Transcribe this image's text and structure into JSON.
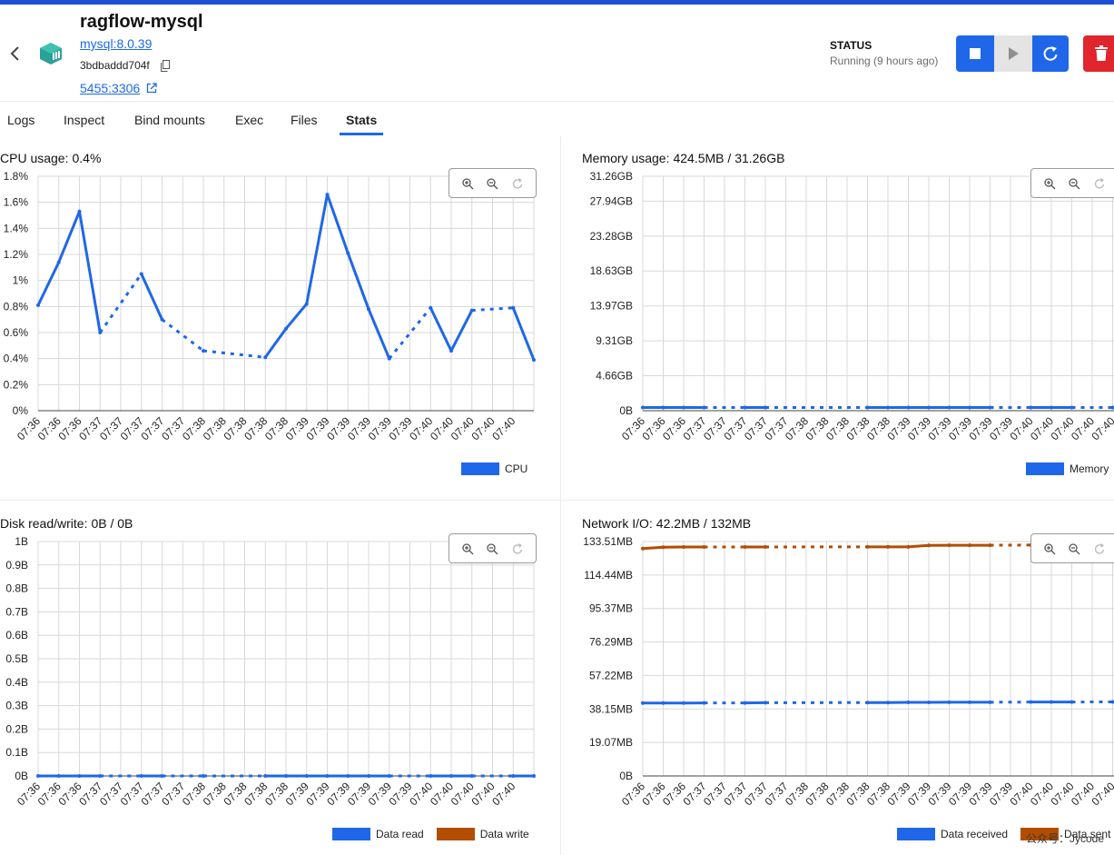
{
  "header": {
    "title": "ragflow-mysql",
    "image": "mysql:8.0.39",
    "container_id": "3bdbaddd704f",
    "port": "5455:3306"
  },
  "status": {
    "label": "STATUS",
    "text": "Running (9 hours ago)"
  },
  "tabs": [
    "Logs",
    "Inspect",
    "Bind mounts",
    "Exec",
    "Files",
    "Stats"
  ],
  "active_tab": "Stats",
  "colors": {
    "accent": "#1f67e8",
    "danger": "#e0252c",
    "write": "#b34d00"
  },
  "panels": {
    "cpu": {
      "title": "CPU usage:",
      "value": "0.4%"
    },
    "memory": {
      "title": "Memory usage:",
      "value": "424.5MB / 31.26GB"
    },
    "disk": {
      "title": "Disk read/write:",
      "value": "0B / 0B"
    },
    "network": {
      "title": "Network I/O:",
      "value": "42.2MB / 132MB"
    }
  },
  "x_ticks": [
    "07:36",
    "07:36",
    "07:36",
    "07:37",
    "07:37",
    "07:37",
    "07:37",
    "07:37",
    "07:38",
    "07:38",
    "07:38",
    "07:38",
    "07:38",
    "07:39",
    "07:39",
    "07:39",
    "07:39",
    "07:39",
    "07:39",
    "07:40",
    "07:40",
    "07:40",
    "07:40",
    "07:40"
  ],
  "chart_data": [
    {
      "type": "line",
      "id": "cpu",
      "y_ticks": [
        "0%",
        "0.2%",
        "0.4%",
        "0.6%",
        "0.8%",
        "1%",
        "1.2%",
        "1.4%",
        "1.6%",
        "1.8%"
      ],
      "ylim": [
        0,
        1.8
      ],
      "series": [
        {
          "name": "CPU",
          "color": "#1f67e8",
          "points": [
            [
              0,
              0.81
            ],
            [
              1,
              1.14
            ],
            [
              2,
              1.53
            ],
            [
              3,
              0.6
            ],
            [
              5,
              1.05
            ],
            [
              6,
              0.7
            ],
            [
              8,
              0.46
            ],
            [
              11,
              0.41
            ],
            [
              12,
              0.63
            ],
            [
              13,
              0.82
            ],
            [
              14,
              1.66
            ],
            [
              15,
              1.21
            ],
            [
              16,
              0.78
            ],
            [
              17,
              0.4
            ],
            [
              19,
              0.79
            ],
            [
              20,
              0.46
            ],
            [
              21,
              0.77
            ],
            [
              23,
              0.79
            ],
            [
              24,
              0.39
            ]
          ],
          "dashed_segments": [
            [
              3,
              5
            ],
            [
              6,
              8
            ],
            [
              8,
              11
            ],
            [
              17,
              19
            ],
            [
              21,
              23
            ]
          ]
        }
      ]
    },
    {
      "type": "line",
      "id": "memory",
      "y_ticks": [
        "0B",
        "4.66GB",
        "9.31GB",
        "13.97GB",
        "18.63GB",
        "23.28GB",
        "27.94GB",
        "31.26GB"
      ],
      "y_values": [
        0,
        4.66,
        9.31,
        13.97,
        18.63,
        23.28,
        27.94,
        31.26
      ],
      "ylim": [
        0,
        31.26
      ],
      "series": [
        {
          "name": "Memory",
          "color": "#1f67e8",
          "points": [
            [
              0,
              0.42
            ],
            [
              1,
              0.42
            ],
            [
              2,
              0.42
            ],
            [
              3,
              0.42
            ],
            [
              5,
              0.42
            ],
            [
              6,
              0.42
            ],
            [
              11,
              0.42
            ],
            [
              12,
              0.42
            ],
            [
              13,
              0.42
            ],
            [
              14,
              0.42
            ],
            [
              15,
              0.42
            ],
            [
              16,
              0.42
            ],
            [
              17,
              0.42
            ],
            [
              19,
              0.42
            ],
            [
              20,
              0.42
            ],
            [
              21,
              0.42
            ],
            [
              23,
              0.42
            ],
            [
              24,
              0.42
            ]
          ],
          "dashed_segments": [
            [
              3,
              5
            ],
            [
              6,
              11
            ],
            [
              17,
              19
            ],
            [
              21,
              23
            ]
          ]
        }
      ]
    },
    {
      "type": "line",
      "id": "disk",
      "y_ticks": [
        "0B",
        "0.1B",
        "0.2B",
        "0.3B",
        "0.4B",
        "0.5B",
        "0.6B",
        "0.7B",
        "0.8B",
        "0.9B",
        "1B"
      ],
      "ylim": [
        0,
        1
      ],
      "series": [
        {
          "name": "Data read",
          "color": "#1f67e8",
          "points": [
            [
              0,
              0
            ],
            [
              1,
              0
            ],
            [
              2,
              0
            ],
            [
              3,
              0
            ],
            [
              5,
              0
            ],
            [
              6,
              0
            ],
            [
              8,
              0
            ],
            [
              11,
              0
            ],
            [
              12,
              0
            ],
            [
              13,
              0
            ],
            [
              14,
              0
            ],
            [
              15,
              0
            ],
            [
              16,
              0
            ],
            [
              17,
              0
            ],
            [
              19,
              0
            ],
            [
              20,
              0
            ],
            [
              21,
              0
            ],
            [
              23,
              0
            ],
            [
              24,
              0
            ]
          ],
          "dashed_segments": [
            [
              3,
              5
            ],
            [
              6,
              8
            ],
            [
              8,
              11
            ],
            [
              17,
              19
            ],
            [
              21,
              23
            ]
          ]
        },
        {
          "name": "Data write",
          "color": "#b34d00",
          "points": [],
          "dashed_segments": []
        }
      ]
    },
    {
      "type": "line",
      "id": "network",
      "y_ticks": [
        "0B",
        "19.07MB",
        "38.15MB",
        "57.22MB",
        "76.29MB",
        "95.37MB",
        "114.44MB",
        "133.51MB"
      ],
      "y_values": [
        0,
        19.07,
        38.15,
        57.22,
        76.29,
        95.37,
        114.44,
        133.51
      ],
      "ylim": [
        0,
        133.51
      ],
      "series": [
        {
          "name": "Data received",
          "color": "#1f67e8",
          "points": [
            [
              0,
              41.5
            ],
            [
              1,
              41.5
            ],
            [
              2,
              41.5
            ],
            [
              3,
              41.6
            ],
            [
              5,
              41.6
            ],
            [
              6,
              41.7
            ],
            [
              11,
              41.8
            ],
            [
              12,
              41.8
            ],
            [
              13,
              41.9
            ],
            [
              14,
              41.9
            ],
            [
              15,
              42.0
            ],
            [
              16,
              42.0
            ],
            [
              17,
              42.0
            ],
            [
              19,
              42.1
            ],
            [
              20,
              42.1
            ],
            [
              21,
              42.1
            ],
            [
              23,
              42.2
            ],
            [
              24,
              42.2
            ]
          ],
          "dashed_segments": [
            [
              3,
              5
            ],
            [
              6,
              11
            ],
            [
              17,
              19
            ],
            [
              21,
              23
            ]
          ]
        },
        {
          "name": "Data sent",
          "color": "#b34d00",
          "points": [
            [
              0,
              129.5
            ],
            [
              1,
              130.3
            ],
            [
              2,
              130.4
            ],
            [
              3,
              130.4
            ],
            [
              5,
              130.4
            ],
            [
              6,
              130.4
            ],
            [
              11,
              130.5
            ],
            [
              12,
              130.5
            ],
            [
              13,
              130.5
            ],
            [
              14,
              131.3
            ],
            [
              15,
              131.4
            ],
            [
              16,
              131.4
            ],
            [
              17,
              131.4
            ],
            [
              19,
              131.5
            ],
            [
              20,
              131.6
            ],
            [
              21,
              131.6
            ],
            [
              23,
              131.8
            ],
            [
              24,
              132.0
            ]
          ],
          "dashed_segments": [
            [
              3,
              5
            ],
            [
              6,
              11
            ],
            [
              17,
              19
            ],
            [
              21,
              23
            ]
          ]
        }
      ]
    }
  ],
  "watermark": "公众号：Jycode"
}
